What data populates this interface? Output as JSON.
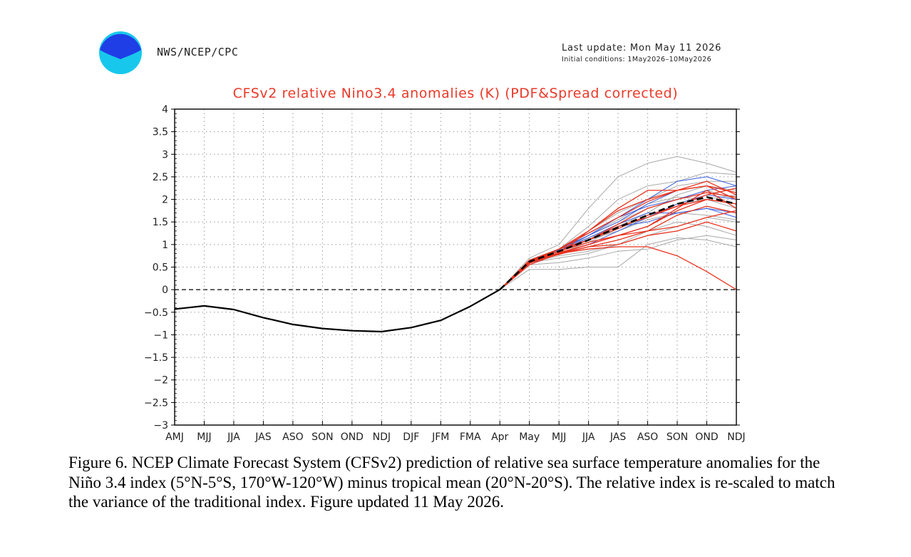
{
  "header": {
    "agency": "NWS/NCEP/CPC",
    "last_update": "Last update: Mon May 11 2026",
    "initial_conditions": "Initial conditions: 1May2026–10May2026",
    "logo_colors": {
      "top": "#1f3ee6",
      "bottom": "#18c8ec"
    }
  },
  "chart_data": {
    "type": "line",
    "title": "CFSv2 relative Nino3.4 anomalies (K) (PDF&Spread corrected)",
    "xlabel": "",
    "ylabel": "",
    "categories": [
      "AMJ",
      "MJJ",
      "JJA",
      "JAS",
      "ASO",
      "SON",
      "OND",
      "NDJ",
      "DJF",
      "JFM",
      "FMA",
      "Apr",
      "May",
      "MJJ",
      "JJA",
      "JAS",
      "ASO",
      "SON",
      "OND",
      "NDJ"
    ],
    "ylim": [
      -3,
      4
    ],
    "yticks": [
      "4",
      "3.5",
      "3",
      "2.5",
      "2",
      "1.5",
      "1",
      "0.5",
      "0",
      "−0.5",
      "−1",
      "−1.5",
      "−2",
      "−2.5",
      "−3"
    ],
    "grid": "dotted",
    "zero_line": "dashed",
    "observed": {
      "color": "#000000",
      "x_index": [
        0,
        1,
        2,
        3,
        4,
        5,
        6,
        7,
        8,
        9,
        10,
        11
      ],
      "values": [
        -0.43,
        -0.36,
        -0.44,
        -0.62,
        -0.77,
        -0.86,
        -0.91,
        -0.93,
        -0.84,
        -0.68,
        -0.37,
        0.0
      ]
    },
    "ensemble_mean": {
      "color": "#000000",
      "style": "dashed",
      "x_index": [
        11,
        12,
        13,
        14,
        15,
        16,
        17,
        18,
        19
      ],
      "values": [
        0.0,
        0.62,
        0.85,
        1.1,
        1.38,
        1.65,
        1.9,
        2.05,
        1.9
      ]
    },
    "members": {
      "x_index": [
        11,
        12,
        13,
        14,
        15,
        16,
        17,
        18,
        19
      ],
      "red": [
        [
          0.0,
          0.55,
          0.8,
          1.3,
          1.8,
          2.2,
          2.2,
          2.4,
          2.1
        ],
        [
          0.0,
          0.6,
          0.9,
          1.3,
          1.75,
          2.0,
          2.2,
          2.3,
          2.0
        ],
        [
          0.0,
          0.65,
          0.9,
          1.1,
          1.4,
          1.6,
          1.85,
          2.1,
          2.25
        ],
        [
          0.0,
          0.6,
          0.8,
          1.0,
          1.2,
          1.4,
          1.8,
          2.2,
          1.8
        ],
        [
          0.0,
          0.62,
          0.85,
          1.1,
          1.35,
          1.65,
          1.85,
          2.0,
          1.9
        ],
        [
          0.0,
          0.6,
          0.8,
          0.95,
          1.0,
          1.2,
          1.3,
          1.5,
          1.3
        ],
        [
          0.0,
          0.63,
          0.8,
          0.9,
          0.95,
          0.95,
          0.75,
          0.4,
          0.0
        ],
        [
          0.0,
          0.65,
          0.85,
          1.05,
          1.2,
          1.4,
          1.75,
          2.0,
          1.9
        ],
        [
          0.0,
          0.6,
          0.85,
          1.1,
          1.45,
          1.8,
          2.0,
          2.15,
          2.05
        ],
        [
          0.0,
          0.58,
          0.82,
          1.0,
          1.2,
          1.3,
          1.4,
          1.6,
          1.75
        ],
        [
          0.0,
          0.62,
          0.9,
          1.25,
          1.6,
          1.95,
          2.2,
          2.3,
          2.15
        ],
        [
          0.0,
          0.6,
          0.78,
          0.95,
          1.1,
          1.3,
          1.65,
          1.85,
          1.7
        ]
      ],
      "blue": [
        [
          0.0,
          0.6,
          0.85,
          1.2,
          1.6,
          2.0,
          2.4,
          2.5,
          2.3
        ],
        [
          0.0,
          0.62,
          0.9,
          1.2,
          1.5,
          1.9,
          2.2,
          2.3,
          2.0
        ],
        [
          0.0,
          0.58,
          0.8,
          1.0,
          1.3,
          1.6,
          1.9,
          2.1,
          2.0
        ],
        [
          0.0,
          0.6,
          0.85,
          1.15,
          1.45,
          1.7,
          1.7,
          1.8,
          1.7
        ],
        [
          0.0,
          0.65,
          0.88,
          1.25,
          1.6,
          1.85,
          2.0,
          2.2,
          2.3
        ],
        [
          0.0,
          0.62,
          0.85,
          1.1,
          1.4,
          1.5,
          1.7,
          1.8,
          1.6
        ]
      ],
      "gray": [
        [
          0.0,
          0.7,
          1.0,
          1.8,
          2.5,
          2.8,
          2.95,
          2.8,
          2.6
        ],
        [
          0.0,
          0.45,
          0.45,
          0.5,
          0.5,
          1.0,
          1.15,
          1.1,
          0.95
        ],
        [
          0.0,
          0.55,
          0.6,
          0.7,
          0.85,
          0.9,
          1.1,
          1.2,
          1.1
        ],
        [
          0.0,
          0.6,
          0.9,
          1.4,
          2.0,
          2.3,
          2.4,
          2.6,
          2.55
        ],
        [
          0.0,
          0.65,
          0.85,
          1.2,
          1.5,
          1.8,
          2.0,
          2.2,
          2.0
        ],
        [
          0.0,
          0.6,
          0.75,
          0.85,
          1.0,
          1.3,
          1.5,
          1.4,
          1.2
        ],
        [
          0.0,
          0.62,
          0.9,
          1.3,
          1.7,
          2.0,
          2.3,
          2.4,
          2.4
        ],
        [
          0.0,
          0.58,
          0.8,
          1.05,
          1.35,
          1.6,
          1.9,
          2.0,
          2.1
        ],
        [
          0.0,
          0.66,
          0.9,
          1.15,
          1.4,
          1.7,
          2.1,
          2.3,
          2.2
        ],
        [
          0.0,
          0.6,
          0.7,
          0.8,
          1.0,
          1.2,
          1.4,
          1.6,
          1.5
        ],
        [
          0.0,
          0.62,
          0.85,
          1.1,
          1.3,
          1.55,
          1.7,
          1.65,
          1.55
        ],
        [
          0.0,
          0.64,
          0.88,
          1.2,
          1.55,
          1.9,
          2.05,
          2.0,
          1.8
        ]
      ]
    },
    "series_colors": {
      "red": "#e8331f",
      "blue": "#3a5fe0",
      "gray": "#a8a8a8"
    }
  },
  "caption": "Figure 6. NCEP Climate Forecast System (CFSv2) prediction of relative sea surface temperature anomalies for the Niño 3.4 index (5°N-5°S, 170°W-120°W) minus tropical mean (20°N-20°S). The relative index is re-scaled to match the variance of the traditional index. Figure updated 11 May 2026."
}
